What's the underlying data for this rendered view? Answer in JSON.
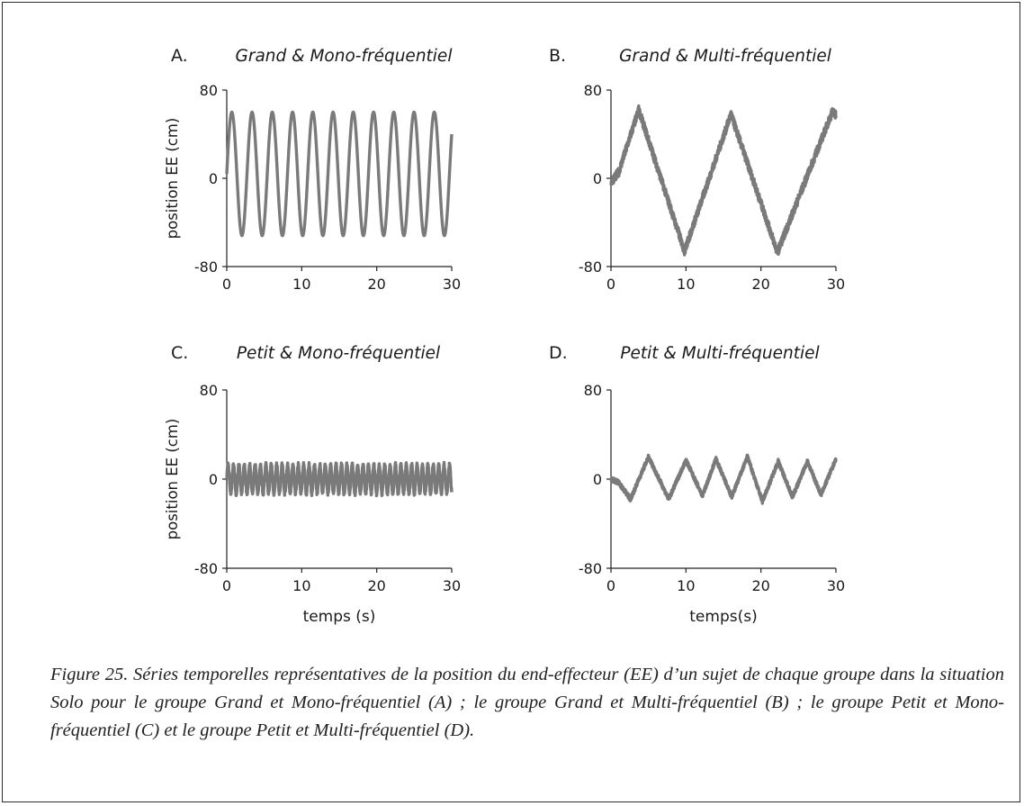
{
  "chart_data": [
    {
      "type": "line",
      "panel_label": "A.",
      "title": "Grand & Mono-fréquentiel",
      "xlabel": "",
      "ylabel": "position EE (cm)",
      "xlim": [
        0,
        30
      ],
      "ylim": [
        -80,
        80
      ],
      "xticks": [
        0,
        10,
        20,
        30
      ],
      "yticks": [
        -80,
        0,
        80
      ],
      "color": "#7a7a7a",
      "series": [
        {
          "shape": "sine",
          "amplitude": 56,
          "period": 2.7,
          "offset": 4,
          "start_value": 4,
          "noise": 0
        }
      ]
    },
    {
      "type": "line",
      "panel_label": "B.",
      "title": "Grand & Multi-fréquentiel",
      "xlabel": "",
      "ylabel": "",
      "xlim": [
        0,
        30
      ],
      "ylim": [
        -80,
        80
      ],
      "xticks": [
        0,
        10,
        20,
        30
      ],
      "yticks": [
        -80,
        0,
        80
      ],
      "color": "#7a7a7a",
      "series": [
        {
          "shape": "triangle",
          "points": [
            [
              0,
              -3
            ],
            [
              1,
              5
            ],
            [
              3.7,
              62
            ],
            [
              9.8,
              -66
            ],
            [
              16,
              58
            ],
            [
              22.2,
              -67
            ],
            [
              29.5,
              60
            ],
            [
              30,
              58
            ]
          ],
          "noise": 4
        }
      ]
    },
    {
      "type": "line",
      "panel_label": "C.",
      "title": "Petit & Mono-fréquentiel",
      "xlabel": "temps (s)",
      "ylabel": "position EE (cm)",
      "xlim": [
        0,
        30
      ],
      "ylim": [
        -80,
        80
      ],
      "xticks": [
        0,
        10,
        20,
        30
      ],
      "yticks": [
        -80,
        0,
        80
      ],
      "color": "#7a7a7a",
      "series": [
        {
          "shape": "sine",
          "amplitude": 13,
          "period": 0.72,
          "offset": 0,
          "start_value": 0,
          "noise": 2
        }
      ]
    },
    {
      "type": "line",
      "panel_label": "D.",
      "title": "Petit & Multi-fréquentiel",
      "xlabel": "temps(s)",
      "ylabel": "",
      "xlim": [
        0,
        30
      ],
      "ylim": [
        -80,
        80
      ],
      "xticks": [
        0,
        10,
        20,
        30
      ],
      "yticks": [
        -80,
        0,
        80
      ],
      "color": "#7a7a7a",
      "series": [
        {
          "shape": "triangle",
          "points": [
            [
              0,
              0
            ],
            [
              1,
              -3
            ],
            [
              2.6,
              -18
            ],
            [
              5,
              20
            ],
            [
              7.7,
              -18
            ],
            [
              10,
              17
            ],
            [
              12.2,
              -15
            ],
            [
              14,
              18
            ],
            [
              16.1,
              -16
            ],
            [
              18.2,
              20
            ],
            [
              20.2,
              -20
            ],
            [
              22.3,
              16
            ],
            [
              24.2,
              -16
            ],
            [
              26.2,
              16
            ],
            [
              28,
              -14
            ],
            [
              30,
              18
            ]
          ],
          "noise": 2
        }
      ]
    }
  ],
  "caption": "Figure 25. Séries temporelles représentatives de la position du end-effecteur (EE) d’un sujet de chaque groupe dans la situation Solo pour le groupe Grand et Mono-fréquentiel (A) ; le groupe Grand et Multi-fréquentiel (B) ; le groupe Petit et Mono-fréquentiel (C) et le groupe Petit et Multi-fréquentiel (D)."
}
